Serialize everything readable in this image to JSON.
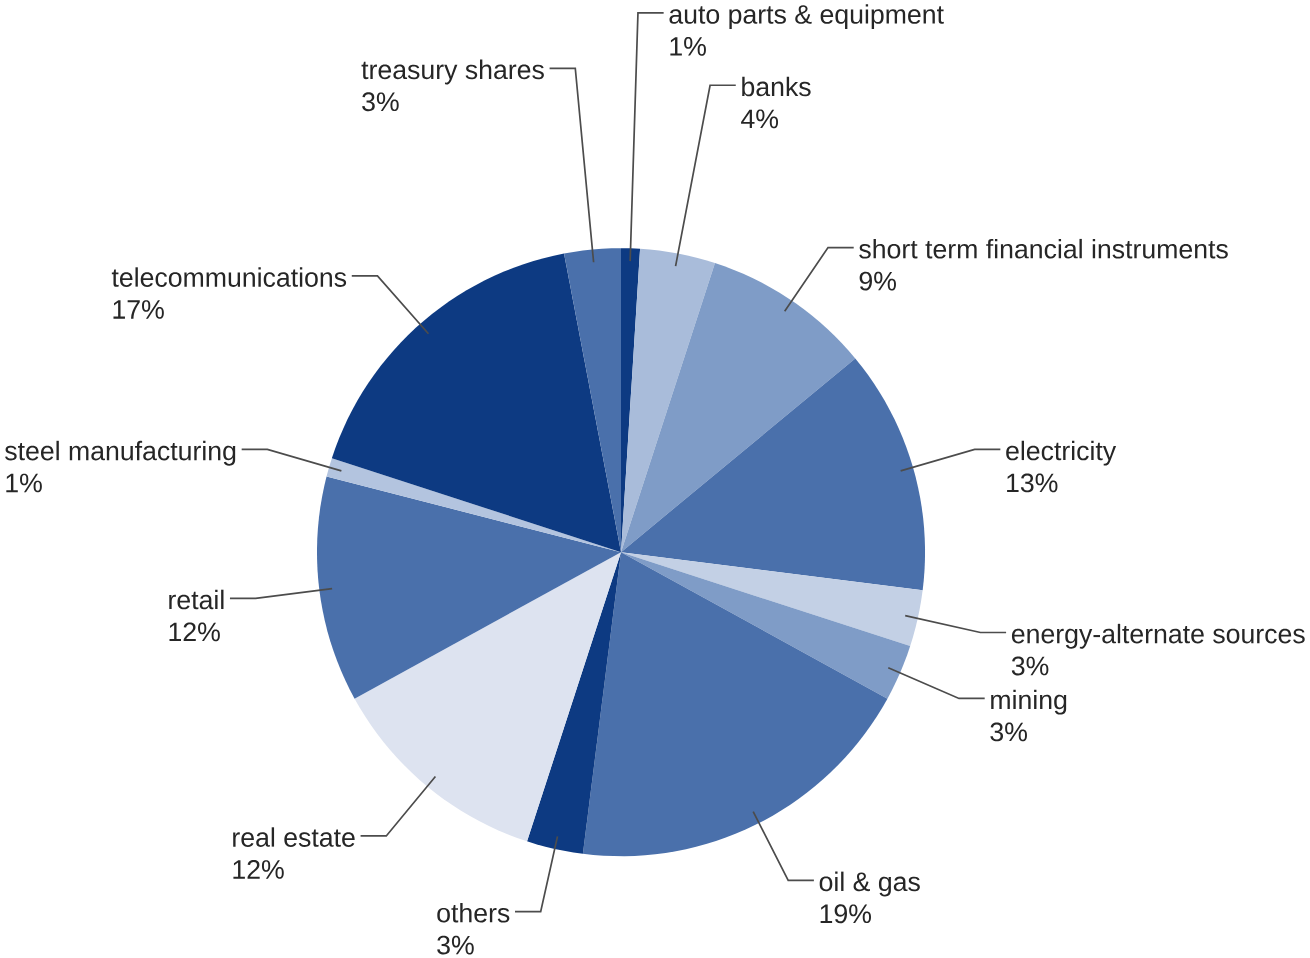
{
  "chart_data": {
    "type": "pie",
    "categories": [
      "auto parts & equipment",
      "banks",
      "short term financial instruments",
      "electricity",
      "energy-alternate sources",
      "mining",
      "oil & gas",
      "others",
      "real estate",
      "retail",
      "steel manufacturing",
      "telecommunications",
      "treasury shares"
    ],
    "values": [
      1,
      4,
      9,
      13,
      3,
      3,
      19,
      3,
      12,
      12,
      1,
      17,
      3
    ],
    "value_labels": [
      "1%",
      "4%",
      "9%",
      "13%",
      "3%",
      "3%",
      "19%",
      "3%",
      "12%",
      "12%",
      "1%",
      "17%",
      "3%"
    ],
    "colors": [
      "#0d3a82",
      "#a9bcda",
      "#7f9cc7",
      "#4a70ab",
      "#c3d0e5",
      "#7f9cc7",
      "#4a70ab",
      "#0d3a82",
      "#dde3f0",
      "#4a70ab",
      "#b3c4df",
      "#0d3a82",
      "#4a70ab"
    ]
  }
}
